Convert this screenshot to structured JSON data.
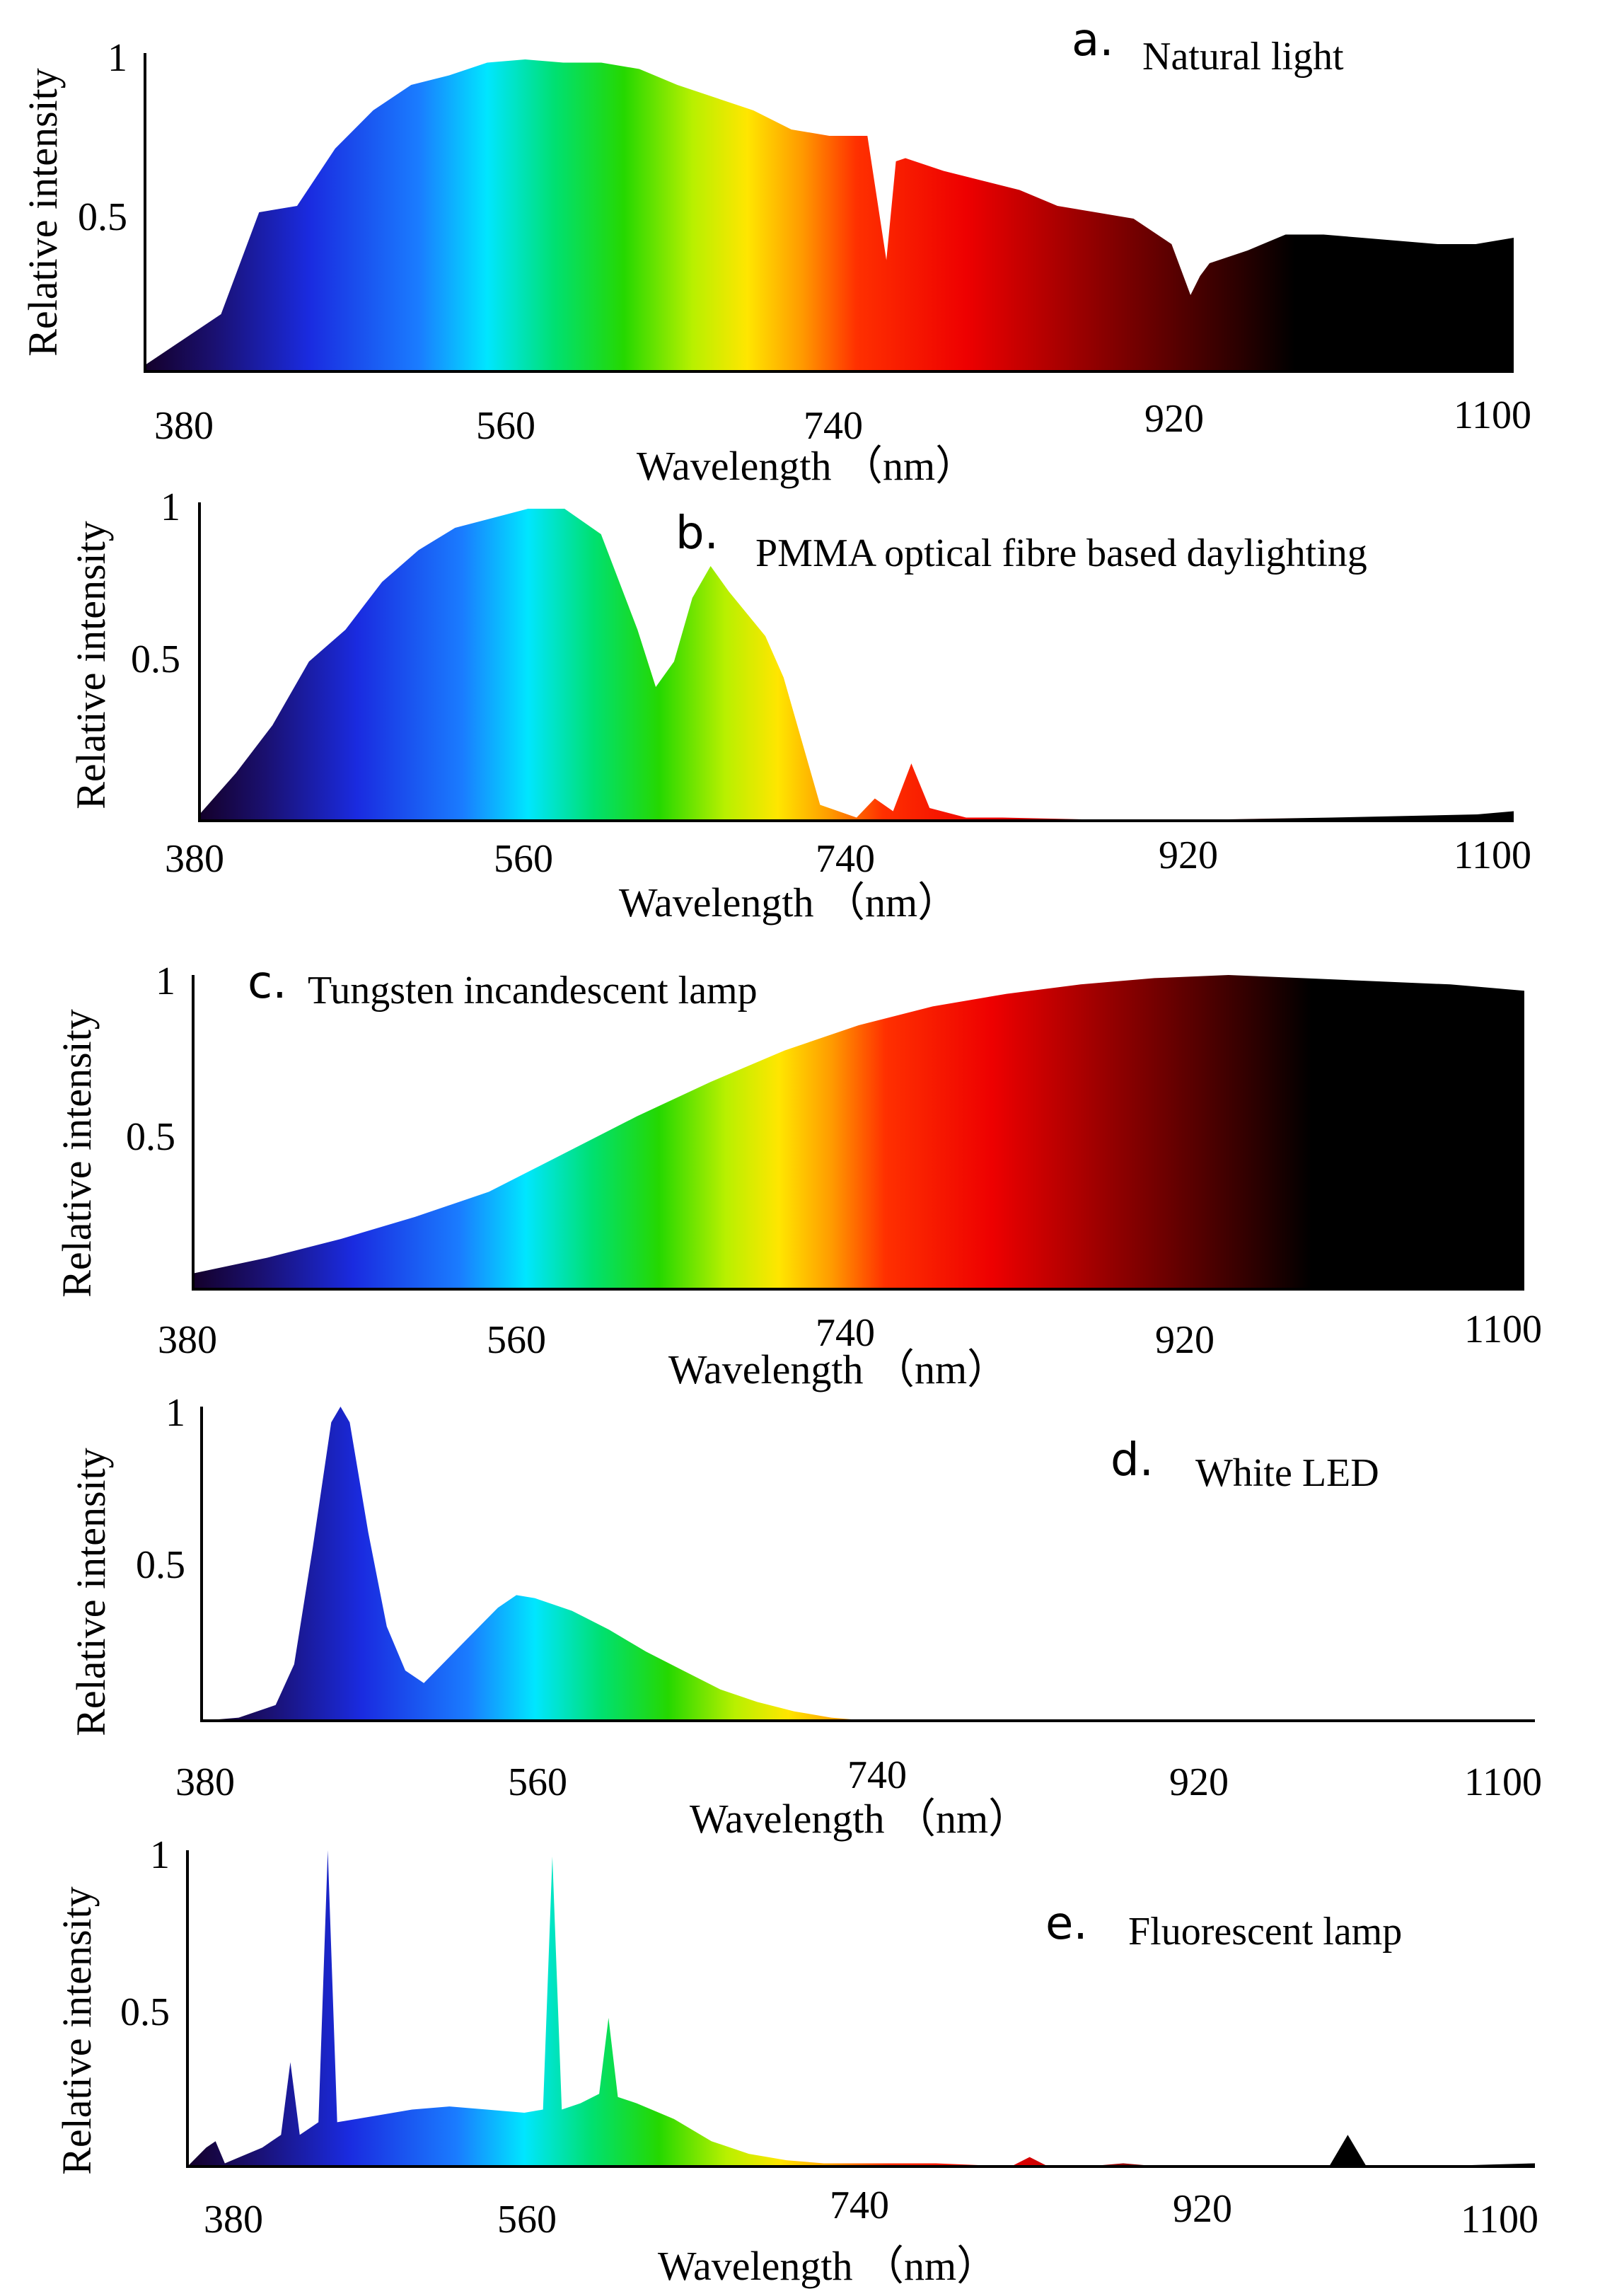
{
  "chart_data": [
    {
      "type": "area",
      "label": "a.",
      "title": "Natural light",
      "xlabel": "Wavelength （nm）",
      "ylabel": "Relative intensity",
      "xlim": [
        380,
        1100
      ],
      "ylim": [
        0,
        1
      ],
      "x_ticks": [
        "380",
        "560",
        "740",
        "920",
        "1100"
      ],
      "y_ticks": [
        "0.5",
        "1"
      ],
      "x": [
        380,
        400,
        420,
        440,
        460,
        480,
        500,
        520,
        540,
        560,
        580,
        600,
        620,
        640,
        660,
        680,
        700,
        720,
        740,
        760,
        770,
        775,
        780,
        800,
        820,
        840,
        860,
        880,
        900,
        920,
        930,
        935,
        940,
        960,
        980,
        1000,
        1020,
        1040,
        1060,
        1080,
        1100
      ],
      "y": [
        0.02,
        0.1,
        0.18,
        0.5,
        0.52,
        0.7,
        0.82,
        0.9,
        0.93,
        0.97,
        0.98,
        0.97,
        0.97,
        0.95,
        0.9,
        0.86,
        0.82,
        0.76,
        0.74,
        0.74,
        0.35,
        0.66,
        0.67,
        0.63,
        0.6,
        0.57,
        0.52,
        0.5,
        0.48,
        0.4,
        0.24,
        0.3,
        0.34,
        0.38,
        0.43,
        0.43,
        0.42,
        0.41,
        0.4,
        0.4,
        0.42
      ]
    },
    {
      "type": "area",
      "label": "b.",
      "title": "PMMA optical fibre based daylighting",
      "xlabel": "Wavelength （nm）",
      "ylabel": "Relative intensity",
      "xlim": [
        380,
        1100
      ],
      "ylim": [
        0,
        1
      ],
      "x_ticks": [
        "380",
        "560",
        "740",
        "920",
        "1100"
      ],
      "y_ticks": [
        "0.5",
        "1"
      ],
      "x": [
        380,
        400,
        420,
        440,
        460,
        480,
        500,
        520,
        540,
        560,
        580,
        600,
        620,
        630,
        640,
        650,
        660,
        670,
        680,
        690,
        700,
        710,
        720,
        740,
        750,
        760,
        770,
        780,
        800,
        820,
        900,
        1000,
        1080,
        1100
      ],
      "y": [
        0.02,
        0.15,
        0.3,
        0.5,
        0.6,
        0.75,
        0.85,
        0.92,
        0.95,
        0.98,
        0.98,
        0.9,
        0.6,
        0.42,
        0.5,
        0.7,
        0.8,
        0.72,
        0.65,
        0.58,
        0.45,
        0.25,
        0.05,
        0.01,
        0.07,
        0.03,
        0.18,
        0.04,
        0.01,
        0.01,
        0.0,
        0.01,
        0.02,
        0.03
      ]
    },
    {
      "type": "area",
      "label": "c.",
      "title": "Tungsten incandescent lamp",
      "xlabel": "Wavelength （nm）",
      "ylabel": "Relative intensity",
      "xlim": [
        380,
        1100
      ],
      "ylim": [
        0,
        1
      ],
      "x_ticks": [
        "380",
        "560",
        "740",
        "920",
        "1100"
      ],
      "y_ticks": [
        "0.5",
        "1"
      ],
      "x": [
        380,
        420,
        460,
        500,
        540,
        580,
        620,
        660,
        700,
        740,
        780,
        820,
        860,
        900,
        940,
        980,
        1020,
        1060,
        1100
      ],
      "y": [
        0.05,
        0.1,
        0.16,
        0.23,
        0.31,
        0.43,
        0.55,
        0.66,
        0.76,
        0.84,
        0.9,
        0.94,
        0.97,
        0.99,
        1.0,
        0.99,
        0.98,
        0.97,
        0.95
      ]
    },
    {
      "type": "area",
      "label": "d.",
      "title": "White LED",
      "xlabel": "Wavelength （nm）",
      "ylabel": "Relative intensity",
      "xlim": [
        380,
        1100
      ],
      "ylim": [
        0,
        1
      ],
      "x_ticks": [
        "380",
        "560",
        "740",
        "920",
        "1100"
      ],
      "y_ticks": [
        "0.5",
        "1"
      ],
      "x": [
        380,
        400,
        420,
        430,
        440,
        450,
        455,
        460,
        470,
        480,
        490,
        500,
        520,
        540,
        550,
        560,
        580,
        600,
        620,
        640,
        660,
        680,
        700,
        720,
        740,
        800,
        900,
        1000,
        1100
      ],
      "y": [
        0.0,
        0.01,
        0.05,
        0.18,
        0.55,
        0.95,
        1.0,
        0.95,
        0.6,
        0.3,
        0.16,
        0.12,
        0.24,
        0.36,
        0.4,
        0.39,
        0.35,
        0.29,
        0.22,
        0.16,
        0.1,
        0.06,
        0.03,
        0.01,
        0.0,
        0.0,
        0.0,
        0.0,
        0.0
      ]
    },
    {
      "type": "area",
      "label": "e.",
      "title": "Fluorescent lamp",
      "xlabel": "Wavelength （nm）",
      "ylabel": "Relative intensity",
      "xlim": [
        380,
        1100
      ],
      "ylim": [
        0,
        1
      ],
      "x_ticks": [
        "380",
        "560",
        "740",
        "920",
        "1100"
      ],
      "y_ticks": [
        "0.5",
        "1"
      ],
      "x": [
        380,
        390,
        395,
        400,
        420,
        430,
        435,
        440,
        445,
        450,
        455,
        460,
        480,
        500,
        520,
        540,
        560,
        570,
        575,
        580,
        590,
        600,
        605,
        610,
        620,
        640,
        660,
        680,
        700,
        720,
        740,
        780,
        820,
        830,
        840,
        860,
        880,
        900,
        960,
        990,
        1000,
        1010,
        1040,
        1100
      ],
      "y": [
        0.0,
        0.06,
        0.08,
        0.01,
        0.06,
        0.1,
        0.33,
        0.1,
        0.12,
        0.14,
        1.0,
        0.14,
        0.16,
        0.18,
        0.19,
        0.18,
        0.17,
        0.18,
        0.98,
        0.18,
        0.2,
        0.23,
        0.47,
        0.22,
        0.2,
        0.15,
        0.08,
        0.04,
        0.02,
        0.01,
        0.01,
        0.01,
        0.0,
        0.03,
        0.0,
        0.0,
        0.01,
        0.0,
        0.0,
        0.0,
        0.1,
        0.0,
        0.0,
        0.01
      ]
    }
  ]
}
